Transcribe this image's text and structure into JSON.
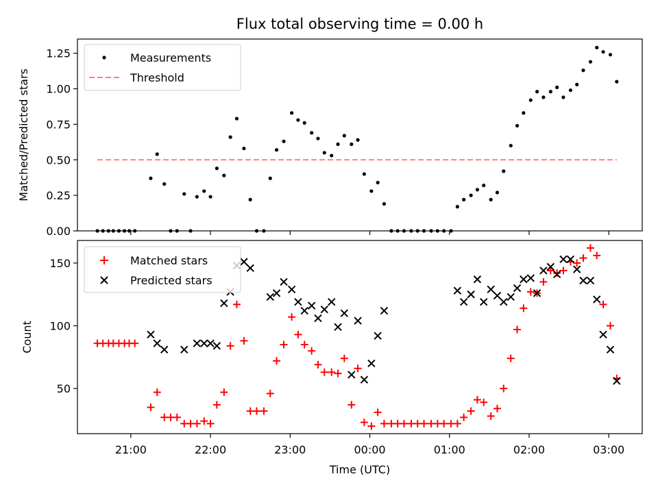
{
  "figure": {
    "title": "Flux total observing time = 0.00 h",
    "xlabel": "Time (UTC)",
    "x_ticks": [
      "21:00",
      "22:00",
      "23:00",
      "00:00",
      "01:00",
      "02:00",
      "03:00"
    ]
  },
  "chart_data": [
    {
      "type": "scatter",
      "panel": "top",
      "ylabel": "Matched/Predicted stars",
      "xlim_hours_utc": [
        20.33,
        27.42
      ],
      "ylim": [
        0,
        1.35
      ],
      "y_ticks": [
        "0.00",
        "0.25",
        "0.50",
        "0.75",
        "1.00",
        "1.25"
      ],
      "legend_position": "upper-left",
      "threshold": {
        "name": "Threshold",
        "value": 0.5,
        "x_range": [
          20.58,
          27.1
        ],
        "color": "#ff7f7f",
        "style": "dashed"
      },
      "series": [
        {
          "name": "Measurements",
          "color": "#000000",
          "marker": "dot",
          "points": [
            [
              20.58,
              0
            ],
            [
              20.65,
              0
            ],
            [
              20.72,
              0
            ],
            [
              20.78,
              0
            ],
            [
              20.85,
              0
            ],
            [
              20.92,
              0
            ],
            [
              20.98,
              0
            ],
            [
              21.05,
              0
            ],
            [
              21.25,
              0.37
            ],
            [
              21.33,
              0.54
            ],
            [
              21.42,
              0.33
            ],
            [
              21.5,
              0
            ],
            [
              21.58,
              0
            ],
            [
              21.67,
              0.26
            ],
            [
              21.75,
              0
            ],
            [
              21.83,
              0.24
            ],
            [
              21.92,
              0.28
            ],
            [
              22.0,
              0.24
            ],
            [
              22.08,
              0.44
            ],
            [
              22.17,
              0.39
            ],
            [
              22.25,
              0.66
            ],
            [
              22.33,
              0.79
            ],
            [
              22.42,
              0.58
            ],
            [
              22.5,
              0.22
            ],
            [
              22.58,
              0
            ],
            [
              22.67,
              0
            ],
            [
              22.75,
              0.37
            ],
            [
              22.83,
              0.57
            ],
            [
              22.92,
              0.63
            ],
            [
              23.02,
              0.83
            ],
            [
              23.1,
              0.78
            ],
            [
              23.18,
              0.76
            ],
            [
              23.27,
              0.69
            ],
            [
              23.35,
              0.65
            ],
            [
              23.43,
              0.55
            ],
            [
              23.52,
              0.53
            ],
            [
              23.6,
              0.61
            ],
            [
              23.68,
              0.67
            ],
            [
              23.77,
              0.61
            ],
            [
              23.85,
              0.64
            ],
            [
              23.93,
              0.4
            ],
            [
              24.02,
              0.28
            ],
            [
              24.1,
              0.34
            ],
            [
              24.18,
              0.19
            ],
            [
              24.27,
              0
            ],
            [
              24.35,
              0
            ],
            [
              24.43,
              0
            ],
            [
              24.52,
              0
            ],
            [
              24.6,
              0
            ],
            [
              24.68,
              0
            ],
            [
              24.77,
              0
            ],
            [
              24.85,
              0
            ],
            [
              24.93,
              0
            ],
            [
              25.02,
              0
            ],
            [
              25.1,
              0.17
            ],
            [
              25.18,
              0.22
            ],
            [
              25.27,
              0.25
            ],
            [
              25.35,
              0.29
            ],
            [
              25.43,
              0.32
            ],
            [
              25.52,
              0.22
            ],
            [
              25.6,
              0.27
            ],
            [
              25.68,
              0.42
            ],
            [
              25.77,
              0.6
            ],
            [
              25.85,
              0.74
            ],
            [
              25.93,
              0.83
            ],
            [
              26.02,
              0.92
            ],
            [
              26.1,
              0.98
            ],
            [
              26.18,
              0.94
            ],
            [
              26.27,
              0.98
            ],
            [
              26.35,
              1.01
            ],
            [
              26.43,
              0.94
            ],
            [
              26.52,
              0.99
            ],
            [
              26.6,
              1.03
            ],
            [
              26.68,
              1.13
            ],
            [
              26.77,
              1.19
            ],
            [
              26.85,
              1.29
            ],
            [
              26.93,
              1.26
            ],
            [
              27.02,
              1.24
            ],
            [
              27.1,
              1.05
            ]
          ]
        }
      ]
    },
    {
      "type": "scatter",
      "panel": "bottom",
      "ylabel": "Count",
      "xlim_hours_utc": [
        20.33,
        27.42
      ],
      "ylim": [
        14,
        168
      ],
      "y_ticks": [
        "50",
        "100",
        "150"
      ],
      "legend_position": "upper-left",
      "series": [
        {
          "name": "Matched stars",
          "color": "#ff0000",
          "marker": "plus",
          "points": [
            [
              20.58,
              86
            ],
            [
              20.65,
              86
            ],
            [
              20.72,
              86
            ],
            [
              20.78,
              86
            ],
            [
              20.85,
              86
            ],
            [
              20.92,
              86
            ],
            [
              20.98,
              86
            ],
            [
              21.05,
              86
            ],
            [
              21.25,
              35
            ],
            [
              21.33,
              47
            ],
            [
              21.42,
              27
            ],
            [
              21.5,
              27
            ],
            [
              21.58,
              27
            ],
            [
              21.67,
              22
            ],
            [
              21.75,
              22
            ],
            [
              21.83,
              22
            ],
            [
              21.92,
              24
            ],
            [
              22.0,
              22
            ],
            [
              22.08,
              37
            ],
            [
              22.17,
              47
            ],
            [
              22.25,
              84
            ],
            [
              22.33,
              117
            ],
            [
              22.42,
              88
            ],
            [
              22.5,
              32
            ],
            [
              22.58,
              32
            ],
            [
              22.67,
              32
            ],
            [
              22.75,
              46
            ],
            [
              22.83,
              72
            ],
            [
              22.92,
              85
            ],
            [
              23.02,
              107
            ],
            [
              23.1,
              93
            ],
            [
              23.18,
              85
            ],
            [
              23.27,
              80
            ],
            [
              23.35,
              69
            ],
            [
              23.43,
              63
            ],
            [
              23.52,
              63
            ],
            [
              23.6,
              62
            ],
            [
              23.68,
              74
            ],
            [
              23.77,
              37
            ],
            [
              23.85,
              66
            ],
            [
              23.93,
              23
            ],
            [
              24.02,
              20
            ],
            [
              24.1,
              31
            ],
            [
              24.18,
              22
            ],
            [
              24.27,
              22
            ],
            [
              24.35,
              22
            ],
            [
              24.43,
              22
            ],
            [
              24.52,
              22
            ],
            [
              24.6,
              22
            ],
            [
              24.68,
              22
            ],
            [
              24.77,
              22
            ],
            [
              24.85,
              22
            ],
            [
              24.93,
              22
            ],
            [
              25.02,
              22
            ],
            [
              25.1,
              22
            ],
            [
              25.18,
              27
            ],
            [
              25.27,
              32
            ],
            [
              25.35,
              41
            ],
            [
              25.43,
              39
            ],
            [
              25.52,
              28
            ],
            [
              25.6,
              34
            ],
            [
              25.68,
              50
            ],
            [
              25.77,
              74
            ],
            [
              25.85,
              97
            ],
            [
              25.93,
              114
            ],
            [
              26.02,
              127
            ],
            [
              26.1,
              126
            ],
            [
              26.18,
              135
            ],
            [
              26.27,
              144
            ],
            [
              26.35,
              142
            ],
            [
              26.43,
              144
            ],
            [
              26.52,
              151
            ],
            [
              26.6,
              150
            ],
            [
              26.68,
              154
            ],
            [
              26.77,
              162
            ],
            [
              26.85,
              156
            ],
            [
              26.93,
              117
            ],
            [
              27.02,
              100
            ],
            [
              27.1,
              58
            ]
          ]
        },
        {
          "name": "Predicted stars",
          "color": "#000000",
          "marker": "x",
          "points": [
            [
              21.25,
              93
            ],
            [
              21.33,
              86
            ],
            [
              21.42,
              81
            ],
            [
              21.67,
              81
            ],
            [
              21.83,
              86
            ],
            [
              21.92,
              86
            ],
            [
              22.0,
              86
            ],
            [
              22.08,
              84
            ],
            [
              22.17,
              118
            ],
            [
              22.25,
              127
            ],
            [
              22.33,
              148
            ],
            [
              22.42,
              151
            ],
            [
              22.5,
              146
            ],
            [
              22.75,
              123
            ],
            [
              22.83,
              126
            ],
            [
              22.92,
              135
            ],
            [
              23.02,
              129
            ],
            [
              23.1,
              119
            ],
            [
              23.18,
              112
            ],
            [
              23.27,
              116
            ],
            [
              23.35,
              106
            ],
            [
              23.43,
              113
            ],
            [
              23.52,
              119
            ],
            [
              23.6,
              99
            ],
            [
              23.68,
              110
            ],
            [
              23.77,
              61
            ],
            [
              23.85,
              104
            ],
            [
              23.93,
              57
            ],
            [
              24.02,
              70
            ],
            [
              24.1,
              92
            ],
            [
              24.18,
              112
            ],
            [
              25.1,
              128
            ],
            [
              25.18,
              119
            ],
            [
              25.27,
              125
            ],
            [
              25.35,
              137
            ],
            [
              25.43,
              119
            ],
            [
              25.52,
              129
            ],
            [
              25.6,
              124
            ],
            [
              25.68,
              119
            ],
            [
              25.77,
              123
            ],
            [
              25.85,
              130
            ],
            [
              25.93,
              137
            ],
            [
              26.02,
              138
            ],
            [
              26.1,
              126
            ],
            [
              26.18,
              144
            ],
            [
              26.27,
              147
            ],
            [
              26.35,
              141
            ],
            [
              26.43,
              153
            ],
            [
              26.52,
              153
            ],
            [
              26.6,
              145
            ],
            [
              26.68,
              136
            ],
            [
              26.77,
              136
            ],
            [
              26.85,
              121
            ],
            [
              26.93,
              93
            ],
            [
              27.02,
              81
            ],
            [
              27.1,
              56
            ]
          ]
        }
      ]
    }
  ]
}
